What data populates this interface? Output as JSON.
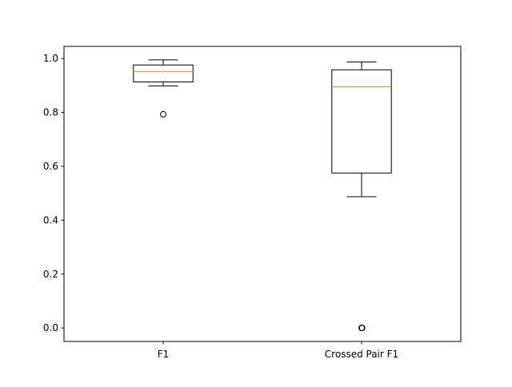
{
  "chart_data": {
    "type": "box",
    "categories": [
      "F1",
      "Crossed Pair F1"
    ],
    "boxes": [
      {
        "label": "F1",
        "whisker_low": 0.898,
        "q1": 0.913,
        "median": 0.951,
        "q3": 0.976,
        "whisker_high": 0.995,
        "outliers": [
          0.793
        ]
      },
      {
        "label": "Crossed Pair F1",
        "whisker_low": 0.487,
        "q1": 0.575,
        "median": 0.895,
        "q3": 0.958,
        "whisker_high": 0.987,
        "outliers": [
          0.0,
          0.0
        ]
      }
    ],
    "yticks": [
      0.0,
      0.2,
      0.4,
      0.6,
      0.8,
      1.0
    ],
    "ytick_labels": [
      "0.0",
      "0.2",
      "0.4",
      "0.6",
      "0.8",
      "1.0"
    ],
    "ylim": [
      -0.05,
      1.045
    ],
    "grid": false,
    "colors": {
      "box": "#000000",
      "median": "#ff7f0e",
      "whisker": "#000000",
      "outlier": "#000000"
    }
  }
}
